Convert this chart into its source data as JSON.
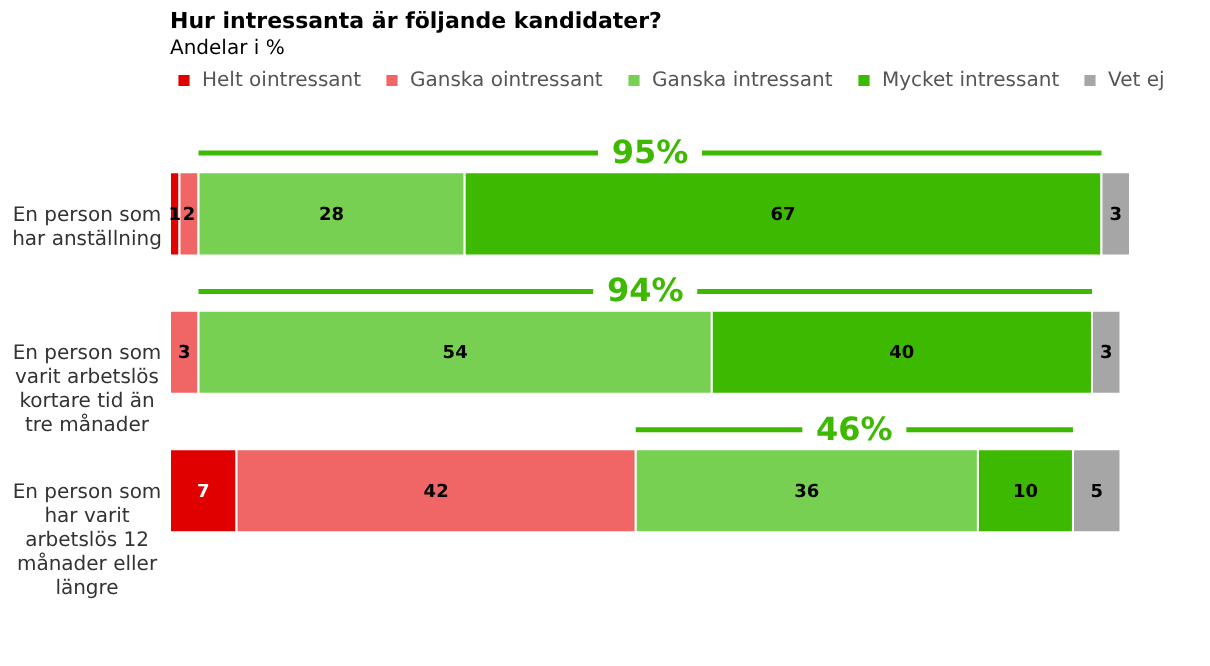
{
  "chart_data": {
    "type": "bar",
    "orientation": "horizontal",
    "stacked": true,
    "title": "Hur intressanta är följande kandidater?",
    "subtitle": "Andelar i %",
    "categories": [
      "En person som har anställning",
      "En person som varit arbetslös kortare tid än tre månader",
      "En person som har varit arbetslös 12 månader eller längre"
    ],
    "series": [
      {
        "name": "Helt ointressant",
        "color": "#e00000",
        "values": [
          1,
          0,
          7
        ],
        "value_labels": [
          "1",
          null,
          "7"
        ]
      },
      {
        "name": "Ganska ointressant",
        "color": "#f06666",
        "values": [
          2,
          3,
          42
        ],
        "value_labels": [
          "2",
          "3",
          "42"
        ]
      },
      {
        "name": "Ganska intressant",
        "color": "#77d052",
        "values": [
          28,
          54,
          36
        ],
        "value_labels": [
          "28",
          "54",
          "36"
        ]
      },
      {
        "name": "Mycket intressant",
        "color": "#3cb900",
        "values": [
          67,
          40,
          10
        ],
        "value_labels": [
          "67",
          "40",
          "10"
        ]
      },
      {
        "name": "Vet ej",
        "color": "#a6a6a6",
        "values": [
          3,
          3,
          5
        ],
        "value_labels": [
          "3",
          "3",
          "5"
        ]
      }
    ],
    "legend": "top",
    "annotations": [
      "95%",
      "94%",
      "46%"
    ]
  }
}
